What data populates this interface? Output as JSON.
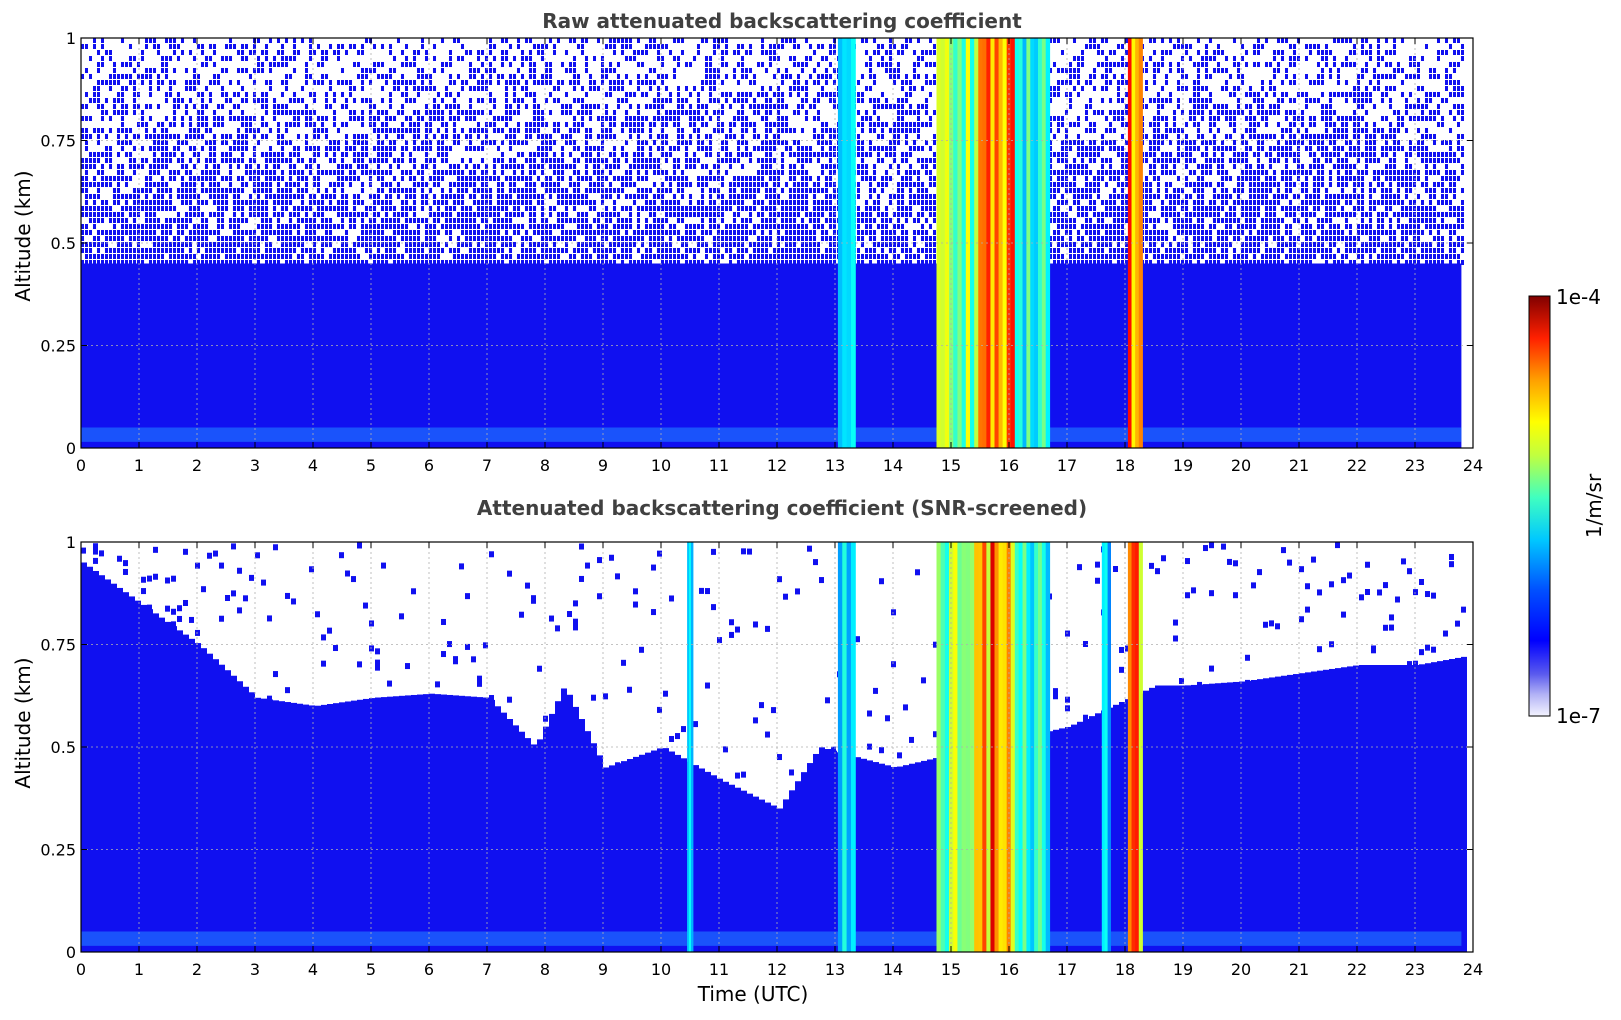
{
  "chart_data": [
    {
      "type": "heatmap",
      "title": "Raw attenuated backscattering coefficient",
      "xlabel": "",
      "ylabel": "Altitude (km)",
      "xlim": [
        0,
        24
      ],
      "ylim": [
        0,
        1
      ],
      "xticks": [
        "0",
        "1",
        "2",
        "3",
        "4",
        "5",
        "6",
        "7",
        "8",
        "9",
        "10",
        "11",
        "12",
        "13",
        "14",
        "15",
        "16",
        "17",
        "18",
        "19",
        "20",
        "21",
        "22",
        "23",
        "24"
      ],
      "yticks": [
        "0",
        "0.25",
        "0.5",
        "0.75",
        "1"
      ],
      "grid": true,
      "data_extent_x": [
        0,
        23.8
      ],
      "aerosol_layer_top_km": 0.45,
      "cloud_bands": [
        {
          "start": 13.05,
          "end": 13.35,
          "intensity": 0.45
        },
        {
          "start": 14.75,
          "end": 15.4,
          "intensity": 0.65
        },
        {
          "start": 15.4,
          "end": 16.1,
          "intensity": 0.92
        },
        {
          "start": 16.1,
          "end": 16.7,
          "intensity": 0.5
        },
        {
          "start": 18.05,
          "end": 18.3,
          "intensity": 0.9
        }
      ]
    },
    {
      "type": "heatmap",
      "title": "Attenuated backscattering coefficient (SNR-screened)",
      "xlabel": "Time (UTC)",
      "ylabel": "Altitude (km)",
      "xlim": [
        0,
        24
      ],
      "ylim": [
        0,
        1
      ],
      "xticks": [
        "0",
        "1",
        "2",
        "3",
        "4",
        "5",
        "6",
        "7",
        "8",
        "9",
        "10",
        "11",
        "12",
        "13",
        "14",
        "15",
        "16",
        "17",
        "18",
        "19",
        "20",
        "21",
        "22",
        "23",
        "24"
      ],
      "yticks": [
        "0",
        "0.25",
        "0.5",
        "0.75",
        "1"
      ],
      "grid": true,
      "data_extent_x": [
        0,
        23.8
      ],
      "layer_top_km": [
        {
          "t": 0,
          "h": 0.95
        },
        {
          "t": 1,
          "h": 0.85
        },
        {
          "t": 2,
          "h": 0.75
        },
        {
          "t": 3,
          "h": 0.62
        },
        {
          "t": 4,
          "h": 0.6
        },
        {
          "t": 5,
          "h": 0.62
        },
        {
          "t": 6,
          "h": 0.63
        },
        {
          "t": 7,
          "h": 0.62
        },
        {
          "t": 7.8,
          "h": 0.5
        },
        {
          "t": 8.3,
          "h": 0.65
        },
        {
          "t": 9,
          "h": 0.45
        },
        {
          "t": 10,
          "h": 0.5
        },
        {
          "t": 11,
          "h": 0.42
        },
        {
          "t": 12,
          "h": 0.35
        },
        {
          "t": 12.7,
          "h": 0.5
        },
        {
          "t": 14,
          "h": 0.45
        },
        {
          "t": 17,
          "h": 0.55
        },
        {
          "t": 18.5,
          "h": 0.65
        },
        {
          "t": 19,
          "h": 0.65
        },
        {
          "t": 20,
          "h": 0.66
        },
        {
          "t": 21,
          "h": 0.68
        },
        {
          "t": 22,
          "h": 0.7
        },
        {
          "t": 23,
          "h": 0.7
        },
        {
          "t": 23.8,
          "h": 0.72
        }
      ],
      "cloud_bands": [
        {
          "start": 10.45,
          "end": 10.55,
          "intensity": 0.4
        },
        {
          "start": 13.05,
          "end": 13.35,
          "intensity": 0.45
        },
        {
          "start": 14.75,
          "end": 15.4,
          "intensity": 0.65
        },
        {
          "start": 15.4,
          "end": 16.1,
          "intensity": 0.92
        },
        {
          "start": 16.1,
          "end": 16.7,
          "intensity": 0.5
        },
        {
          "start": 17.6,
          "end": 17.75,
          "intensity": 0.4
        },
        {
          "start": 18.05,
          "end": 18.3,
          "intensity": 0.9
        }
      ]
    }
  ],
  "colorbar": {
    "label": "1/m/sr",
    "max_label": "1e-4",
    "min_label": "1e-7",
    "colormap": "jet"
  },
  "colors": {
    "background_fill": "#1010f0",
    "grid": "#b0b0b0",
    "title": "#404040"
  }
}
